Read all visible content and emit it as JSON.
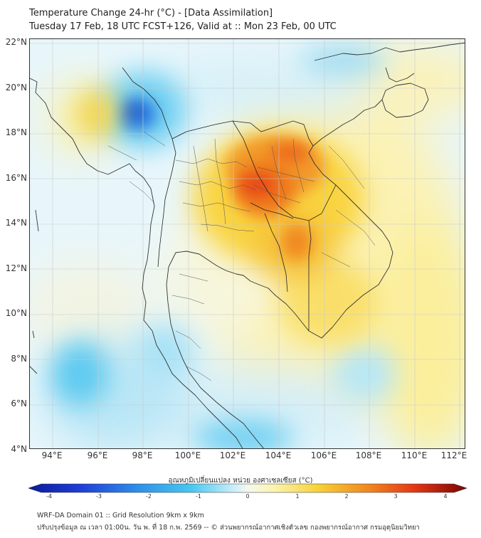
{
  "title_line1": "Temperature Change 24-hr (°C) - [Data Assimilation]",
  "title_line2": "Tuesday 17 Feb, 18 UTC FCST+126, Valid at :: Mon 23 Feb, 00 UTC",
  "lat_ticks": [
    "22°N",
    "20°N",
    "18°N",
    "16°N",
    "14°N",
    "12°N",
    "10°N",
    "8°N",
    "6°N",
    "4°N"
  ],
  "lon_ticks": [
    "94°E",
    "96°E",
    "98°E",
    "100°E",
    "102°E",
    "104°E",
    "106°E",
    "108°E",
    "110°E",
    "112°E"
  ],
  "colorbar": {
    "label": "อุณหภูมิเปลี่ยนแปลง หน่วย องศาเซลเซียส (°C)",
    "ticks": [
      "-4",
      "-3",
      "-2",
      "-1",
      "0",
      "1",
      "2",
      "3",
      "4"
    ]
  },
  "footer_line1": "WRF-DA Domain 01 :: Grid Resolution 9km x 9km",
  "footer_line2": "ปรับปรุงข้อมูล ณ เวลา 01:00น. วัน พ. ที่ 18 ก.พ. 2569 -- © ส่วนพยากรณ์อากาศเชิงตัวเลข กองพยากรณ์อากาศ กรมอุตุนิยมวิทยา",
  "colors": {
    "cold_strong": "#0a1a9c",
    "cold": "#2f6fe0",
    "cool": "#48c7f0",
    "cool_light": "#bfe8f6",
    "neutral": "#f4f9ee",
    "warm_light": "#fbf0a8",
    "warm": "#f7d23a",
    "hot": "#f0841e",
    "hot_strong": "#e33816",
    "extreme": "#7a0404"
  }
}
